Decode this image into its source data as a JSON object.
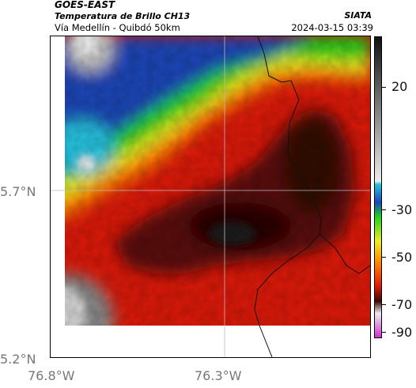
{
  "header": {
    "satellite": "GOES-EAST",
    "product": "Temperatura de Brillo CH13",
    "organization": "SIATA",
    "subtitle": "Vía Medellín - Quibdó 50km",
    "timestamp": "2024-03-15 03:39"
  },
  "map": {
    "lat_labels": [
      "5.7°N",
      "5.2°N"
    ],
    "lon_labels": [
      "76.8°W",
      "76.3°W"
    ],
    "grid": true,
    "features": [
      "brightness-temperature-field",
      "department-border",
      "lat-lon-gridlines"
    ]
  },
  "colorbar": {
    "tick_labels": [
      "20",
      "-30",
      "-50",
      "-70",
      "-90"
    ],
    "units": "",
    "colors": {
      "dark_gray": "#1a1a1a",
      "light_gray": "#c8c8c8",
      "cyan": "#27c3df",
      "blue": "#1d47b8",
      "green": "#1fd41f",
      "yellow": "#eeee22",
      "orange": "#ff7a00",
      "red": "#dd1a0a",
      "dark_red": "#3a0a08",
      "magenta": "#cc33cc"
    }
  }
}
